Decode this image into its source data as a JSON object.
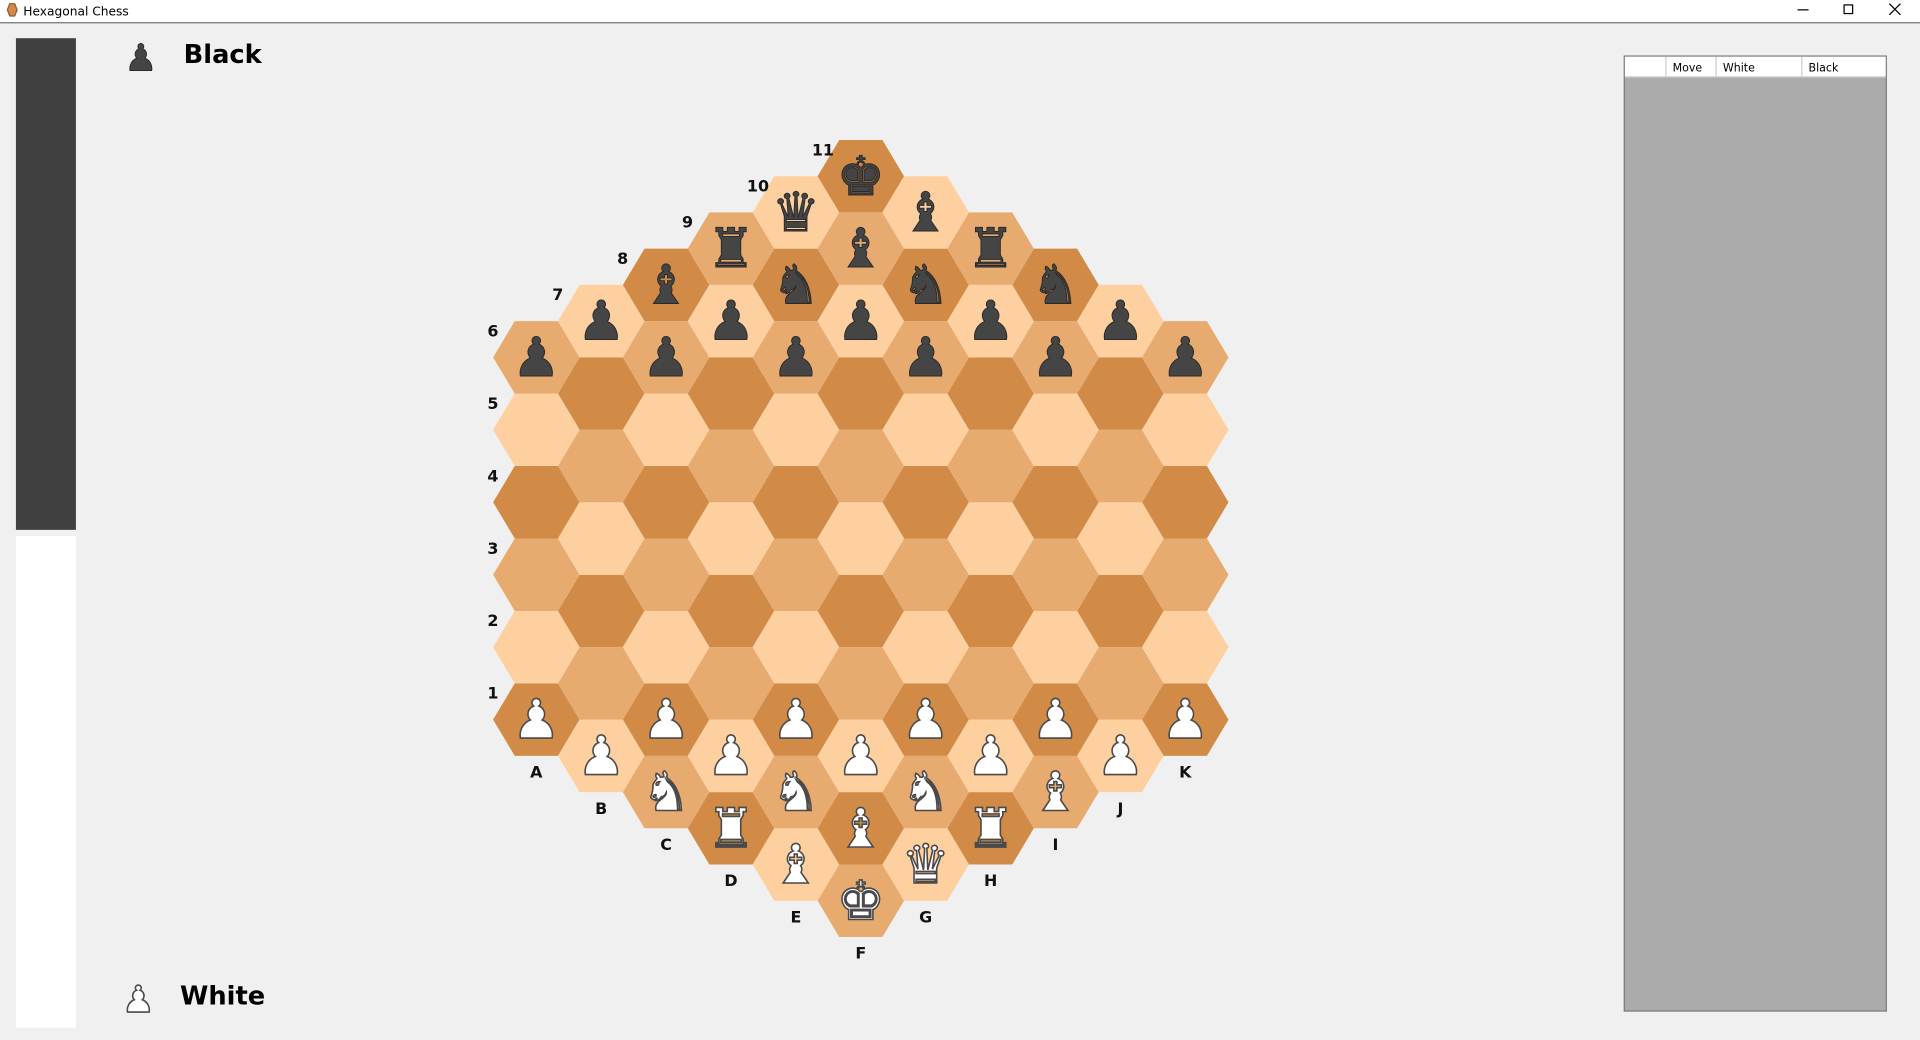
{
  "window": {
    "title": "Hexagonal Chess"
  },
  "players": {
    "black": {
      "icon": "♟",
      "name": "Black"
    },
    "white": {
      "icon": "♟",
      "name": "White"
    }
  },
  "move_list": {
    "columns": [
      "Move",
      "White",
      "Black"
    ]
  },
  "board": {
    "ranks": [
      "1",
      "2",
      "3",
      "4",
      "5",
      "6",
      "7",
      "8",
      "9",
      "10",
      "11"
    ],
    "files": [
      {
        "label": "A",
        "cells": [
          {
            "glyph": "♟",
            "side": "white"
          },
          null,
          null,
          null,
          null,
          {
            "glyph": "♟",
            "side": "black"
          }
        ]
      },
      {
        "label": "B",
        "cells": [
          {
            "glyph": "♟",
            "side": "white"
          },
          null,
          null,
          null,
          null,
          null,
          {
            "glyph": "♟",
            "side": "black"
          }
        ]
      },
      {
        "label": "C",
        "cells": [
          {
            "glyph": "♞",
            "side": "white"
          },
          {
            "glyph": "♟",
            "side": "white"
          },
          null,
          null,
          null,
          null,
          {
            "glyph": "♟",
            "side": "black"
          },
          {
            "glyph": "♝",
            "side": "black"
          }
        ]
      },
      {
        "label": "D",
        "cells": [
          {
            "glyph": "♜",
            "side": "white"
          },
          {
            "glyph": "♟",
            "side": "white"
          },
          null,
          null,
          null,
          null,
          null,
          {
            "glyph": "♟",
            "side": "black"
          },
          {
            "glyph": "♜",
            "side": "black"
          }
        ]
      },
      {
        "label": "E",
        "cells": [
          {
            "glyph": "♝",
            "side": "white"
          },
          {
            "glyph": "♞",
            "side": "white"
          },
          {
            "glyph": "♟",
            "side": "white"
          },
          null,
          null,
          null,
          null,
          {
            "glyph": "♟",
            "side": "black"
          },
          {
            "glyph": "♞",
            "side": "black"
          },
          {
            "glyph": "♛",
            "side": "black"
          }
        ]
      },
      {
        "label": "F",
        "cells": [
          {
            "glyph": "♚",
            "side": "white"
          },
          {
            "glyph": "♝",
            "side": "white"
          },
          {
            "glyph": "♟",
            "side": "white"
          },
          null,
          null,
          null,
          null,
          null,
          {
            "glyph": "♟",
            "side": "black"
          },
          {
            "glyph": "♝",
            "side": "black"
          },
          {
            "glyph": "♚",
            "side": "black"
          }
        ]
      },
      {
        "label": "G",
        "cells": [
          {
            "glyph": "♛",
            "side": "white"
          },
          {
            "glyph": "♞",
            "side": "white"
          },
          {
            "glyph": "♟",
            "side": "white"
          },
          null,
          null,
          null,
          null,
          {
            "glyph": "♟",
            "side": "black"
          },
          {
            "glyph": "♞",
            "side": "black"
          },
          {
            "glyph": "♝",
            "side": "black"
          }
        ]
      },
      {
        "label": "H",
        "cells": [
          {
            "glyph": "♜",
            "side": "white"
          },
          {
            "glyph": "♟",
            "side": "white"
          },
          null,
          null,
          null,
          null,
          null,
          {
            "glyph": "♟",
            "side": "black"
          },
          {
            "glyph": "♜",
            "side": "black"
          }
        ]
      },
      {
        "label": "I",
        "cells": [
          {
            "glyph": "♝",
            "side": "white"
          },
          {
            "glyph": "♟",
            "side": "white"
          },
          null,
          null,
          null,
          null,
          {
            "glyph": "♟",
            "side": "black"
          },
          {
            "glyph": "♞",
            "side": "black"
          }
        ]
      },
      {
        "label": "J",
        "cells": [
          {
            "glyph": "♟",
            "side": "white"
          },
          null,
          null,
          null,
          null,
          null,
          {
            "glyph": "♟",
            "side": "black"
          }
        ]
      },
      {
        "label": "K",
        "cells": [
          {
            "glyph": "♟",
            "side": "white"
          },
          null,
          null,
          null,
          null,
          {
            "glyph": "♟",
            "side": "black"
          }
        ]
      }
    ]
  }
}
